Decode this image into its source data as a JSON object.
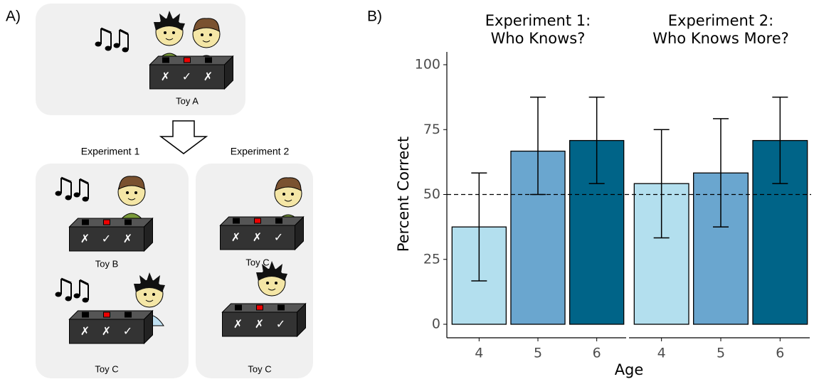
{
  "panel_a": {
    "label": "A)",
    "experiment_labels": [
      "Experiment 1",
      "Experiment 2"
    ],
    "toys": [
      {
        "label": "Toy A",
        "marks": [
          "✗",
          "✓",
          "✗"
        ]
      },
      {
        "label": "Toy B",
        "marks": [
          "✗",
          "✓",
          "✗"
        ]
      },
      {
        "label": "Toy C",
        "marks": [
          "✗",
          "✗",
          "✓"
        ]
      },
      {
        "label": "Toy C",
        "marks": [
          "✗",
          "✗",
          "✓"
        ]
      },
      {
        "label": "Toy C",
        "marks": [
          "✗",
          "✗",
          "✓"
        ]
      }
    ]
  },
  "chart_data": {
    "type": "bar",
    "panel_label": "B)",
    "ylabel": "Percent Correct",
    "xlabel": "Age",
    "ylim": [
      0,
      100
    ],
    "yticks": [
      0,
      25,
      50,
      75,
      100
    ],
    "reference_line": 50,
    "colors": [
      "#b3dfee",
      "#6aa6cf",
      "#006488"
    ],
    "facets": [
      {
        "title": [
          "Experiment 1:",
          "Who Knows?"
        ],
        "categories": [
          "4",
          "5",
          "6"
        ],
        "values": [
          37.5,
          66.7,
          70.8
        ],
        "ci_low": [
          16.7,
          50,
          54.2
        ],
        "ci_high": [
          58.3,
          87.5,
          87.5
        ]
      },
      {
        "title": [
          "Experiment 2:",
          "Who Knows More?"
        ],
        "categories": [
          "4",
          "5",
          "6"
        ],
        "values": [
          54.2,
          58.3,
          70.8
        ],
        "ci_low": [
          33.3,
          37.5,
          54.2
        ],
        "ci_high": [
          75,
          79.2,
          87.5
        ]
      }
    ]
  }
}
